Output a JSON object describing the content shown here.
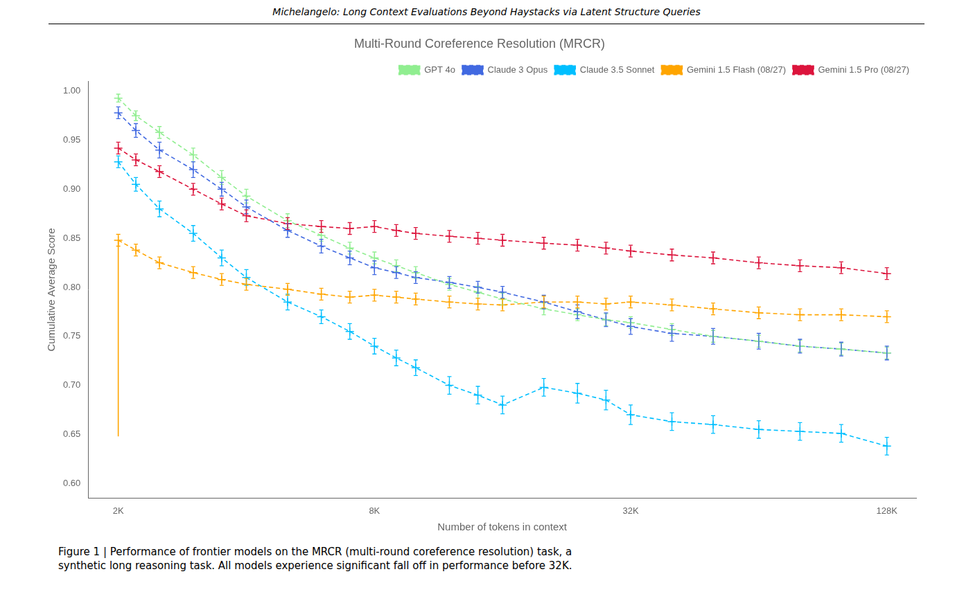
{
  "chart_data": {
    "type": "line",
    "title": "Multi-Round Coreference Resolution (MRCR)",
    "annotations": [
      "Michelangelo: Long Context Evaluations Beyond Haystacks via Latent Structure Queries",
      "Figure 1 | Performance of frontier models on the MRCR (multi-round coreference resolution) task, a\nsynthetic long reasoning task. All models experience significant fall off in performance before 32K."
    ],
    "x_label": "Number of tokens in context",
    "y_label": "Cumulative Average Score",
    "log": "x",
    "grid": false,
    "legend": "upper right",
    "xlim": [
      1700,
      150000
    ],
    "ylim": [
      0.585,
      1.01
    ],
    "xticks": [
      {
        "value": 2000,
        "label": "2K"
      },
      {
        "value": 8000,
        "label": "8K"
      },
      {
        "value": 32000,
        "label": "32K"
      },
      {
        "value": 128000,
        "label": "128K"
      }
    ],
    "yticks": [
      {
        "value": 0.6,
        "label": "0.60"
      },
      0.65,
      {
        "value": 0.7,
        "label": "0.70"
      },
      0.75,
      {
        "value": 0.8,
        "label": "0.80"
      },
      0.85,
      {
        "value": 0.9,
        "label": "0.90"
      },
      0.95,
      {
        "value": 1.0,
        "label": "1.00"
      }
    ],
    "series": [
      {
        "name": "GPT 4o",
        "color": "#90EE90",
        "line_style": "dashed",
        "marker": "plus",
        "x": [
          2000,
          2200,
          2500,
          3000,
          3500,
          4000,
          5000,
          6000,
          7000,
          8000,
          9000,
          10000,
          12000,
          14000,
          16000,
          20000,
          24000,
          28000,
          32000,
          40000,
          50000,
          64000,
          80000,
          100000,
          128000
        ],
        "values": [
          0.993,
          0.975,
          0.958,
          0.935,
          0.912,
          0.893,
          0.868,
          0.853,
          0.84,
          0.83,
          0.822,
          0.815,
          0.803,
          0.795,
          0.788,
          0.778,
          0.772,
          0.767,
          0.764,
          0.757,
          0.75,
          0.745,
          0.74,
          0.737,
          0.733
        ],
        "errors": [
          0.004,
          0.005,
          0.006,
          0.007,
          0.007,
          0.007,
          0.007,
          0.006,
          0.006,
          0.006,
          0.006,
          0.006,
          0.006,
          0.006,
          0.006,
          0.006,
          0.006,
          0.006,
          0.006,
          0.006,
          0.006,
          0.006,
          0.006,
          0.006,
          0.006
        ]
      },
      {
        "name": "Claude 3 Opus",
        "color": "#4169E1",
        "line_style": "dashed",
        "marker": "plus",
        "x": [
          2000,
          2200,
          2500,
          3000,
          3500,
          4000,
          5000,
          6000,
          7000,
          8000,
          9000,
          10000,
          12000,
          14000,
          16000,
          20000,
          24000,
          28000,
          32000,
          40000,
          50000,
          64000,
          80000,
          100000,
          128000
        ],
        "values": [
          0.978,
          0.96,
          0.94,
          0.92,
          0.9,
          0.882,
          0.858,
          0.842,
          0.83,
          0.82,
          0.815,
          0.81,
          0.805,
          0.8,
          0.795,
          0.785,
          0.775,
          0.767,
          0.76,
          0.753,
          0.75,
          0.745,
          0.74,
          0.737,
          0.733
        ],
        "errors": [
          0.006,
          0.007,
          0.008,
          0.008,
          0.007,
          0.007,
          0.007,
          0.007,
          0.007,
          0.007,
          0.006,
          0.006,
          0.006,
          0.006,
          0.006,
          0.007,
          0.007,
          0.007,
          0.008,
          0.008,
          0.008,
          0.008,
          0.007,
          0.007,
          0.007
        ]
      },
      {
        "name": "Claude 3.5 Sonnet",
        "color": "#00BFFF",
        "line_style": "dashed",
        "marker": "plus",
        "x": [
          2000,
          2200,
          2500,
          3000,
          3500,
          4000,
          5000,
          6000,
          7000,
          8000,
          9000,
          10000,
          12000,
          14000,
          16000,
          20000,
          24000,
          28000,
          32000,
          40000,
          50000,
          64000,
          80000,
          100000,
          128000
        ],
        "values": [
          0.928,
          0.905,
          0.88,
          0.855,
          0.83,
          0.81,
          0.785,
          0.77,
          0.755,
          0.74,
          0.728,
          0.718,
          0.7,
          0.69,
          0.68,
          0.698,
          0.692,
          0.685,
          0.67,
          0.663,
          0.66,
          0.655,
          0.653,
          0.651,
          0.638
        ],
        "errors": [
          0.006,
          0.007,
          0.008,
          0.008,
          0.008,
          0.008,
          0.008,
          0.007,
          0.008,
          0.008,
          0.008,
          0.008,
          0.009,
          0.009,
          0.009,
          0.009,
          0.01,
          0.01,
          0.01,
          0.009,
          0.009,
          0.009,
          0.009,
          0.009,
          0.009
        ]
      },
      {
        "name": "Gemini 1.5 Flash (08/27)",
        "color": "#FFA500",
        "line_style": "dashed",
        "marker": "plus",
        "x": [
          2000,
          2200,
          2500,
          3000,
          3500,
          4000,
          5000,
          6000,
          7000,
          8000,
          9000,
          10000,
          12000,
          14000,
          16000,
          20000,
          24000,
          28000,
          32000,
          40000,
          50000,
          64000,
          80000,
          100000,
          128000
        ],
        "values": [
          0.848,
          0.838,
          0.825,
          0.815,
          0.808,
          0.803,
          0.798,
          0.793,
          0.79,
          0.792,
          0.79,
          0.788,
          0.785,
          0.783,
          0.782,
          0.785,
          0.785,
          0.783,
          0.785,
          0.782,
          0.778,
          0.774,
          0.772,
          0.772,
          0.77
        ],
        "errors": [
          0.006,
          0.006,
          0.006,
          0.006,
          0.006,
          0.006,
          0.006,
          0.006,
          0.006,
          0.006,
          0.006,
          0.006,
          0.006,
          0.006,
          0.006,
          0.006,
          0.006,
          0.006,
          0.006,
          0.006,
          0.006,
          0.006,
          0.006,
          0.006,
          0.006
        ]
      },
      {
        "name": "Gemini 1.5 Pro (08/27)",
        "color": "#DC143C",
        "line_style": "dashed",
        "marker": "plus",
        "x": [
          2000,
          2200,
          2500,
          3000,
          3500,
          4000,
          5000,
          6000,
          7000,
          8000,
          9000,
          10000,
          12000,
          14000,
          16000,
          20000,
          24000,
          28000,
          32000,
          40000,
          50000,
          64000,
          80000,
          100000,
          128000
        ],
        "values": [
          0.942,
          0.93,
          0.918,
          0.9,
          0.885,
          0.873,
          0.865,
          0.862,
          0.86,
          0.862,
          0.858,
          0.855,
          0.852,
          0.85,
          0.848,
          0.845,
          0.843,
          0.84,
          0.837,
          0.833,
          0.83,
          0.825,
          0.822,
          0.82,
          0.814
        ],
        "errors": [
          0.006,
          0.006,
          0.006,
          0.006,
          0.006,
          0.006,
          0.006,
          0.006,
          0.006,
          0.006,
          0.006,
          0.006,
          0.006,
          0.006,
          0.006,
          0.006,
          0.006,
          0.006,
          0.006,
          0.006,
          0.006,
          0.006,
          0.006,
          0.006,
          0.006
        ]
      },
      {
        "color": "#FFA500",
        "line_style": "solid",
        "marker": "none",
        "x": [
          2000,
          2000
        ],
        "values": [
          0.648,
          0.848
        ]
      }
    ]
  }
}
